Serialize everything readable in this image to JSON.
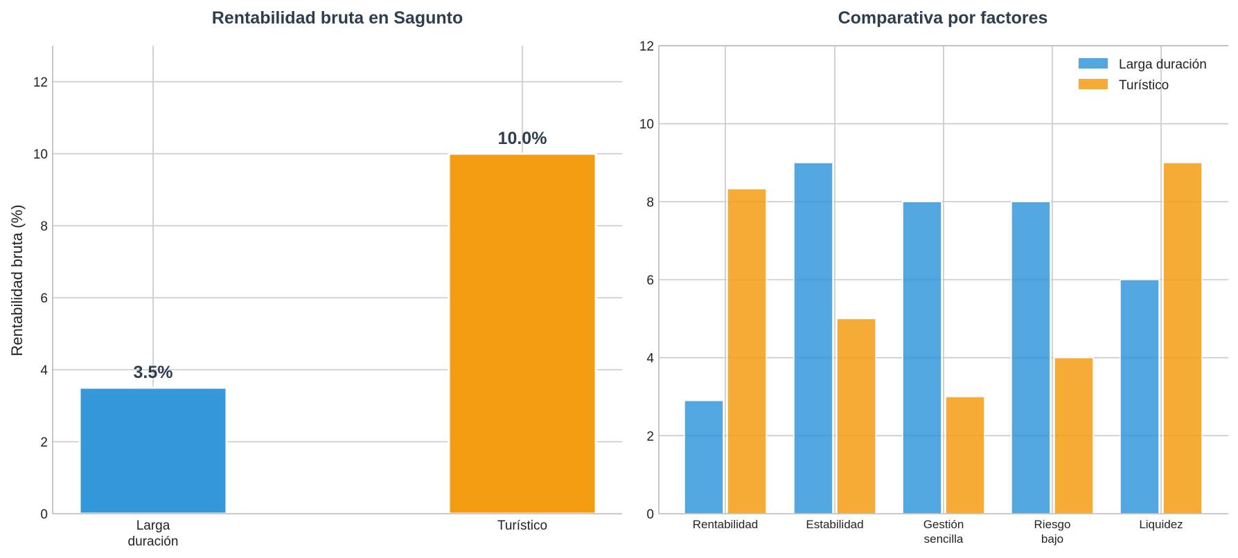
{
  "chart_data": [
    {
      "type": "bar",
      "title": "Rentabilidad bruta en Sagunto",
      "ylabel": "Rentabilidad bruta (%)",
      "xlabel": "",
      "categories": [
        [
          "Larga",
          "duración"
        ],
        [
          "Turístico"
        ]
      ],
      "values": [
        3.5,
        10.0
      ],
      "data_labels": [
        "3.5%",
        "10.0%"
      ],
      "colors": [
        "#3498db",
        "#f39c12"
      ],
      "ylim": [
        0,
        13
      ],
      "yticks": [
        0,
        2,
        4,
        6,
        8,
        10,
        12
      ],
      "grid": true
    },
    {
      "type": "bar",
      "title": "Comparativa por factores",
      "xlabel": "",
      "ylabel": "",
      "categories": [
        [
          "Rentabilidad"
        ],
        [
          "Estabilidad"
        ],
        [
          "Gestión",
          "sencilla"
        ],
        [
          "Riesgo",
          "bajo"
        ],
        [
          "Liquidez"
        ]
      ],
      "series": [
        {
          "name": "Larga duración",
          "color": "#3498db",
          "values": [
            2.9,
            9,
            8,
            8,
            6
          ]
        },
        {
          "name": "Turístico",
          "color": "#f39c12",
          "values": [
            8.33,
            5,
            3,
            4,
            9
          ]
        }
      ],
      "ylim": [
        0,
        12
      ],
      "yticks": [
        0,
        2,
        4,
        6,
        8,
        10,
        12
      ],
      "grid": true,
      "legend": "top-right"
    }
  ]
}
